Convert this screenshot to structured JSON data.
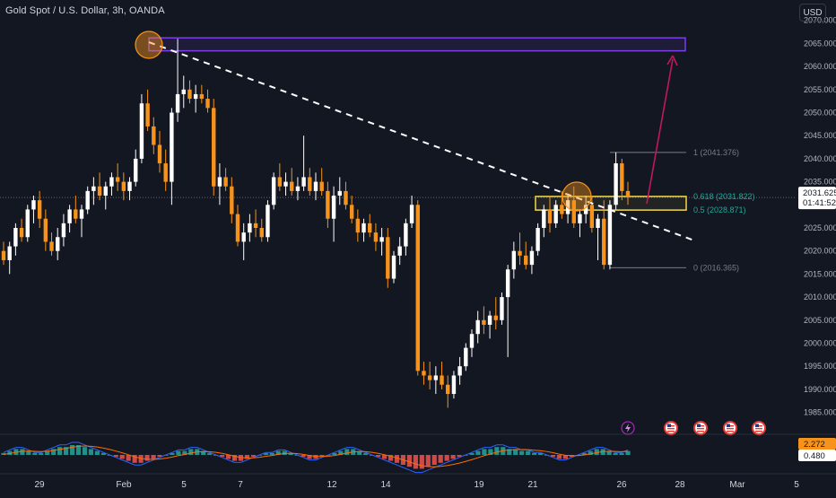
{
  "header": {
    "title": "Gold Spot / U.S. Dollar, 3h, OANDA",
    "currency_button": "USD"
  },
  "colors": {
    "background": "#131722",
    "candle_up": "#ffffff",
    "candle_down": "#f7931a",
    "rectangle_purple": "#7b3fe4",
    "fib_box": "#f5d547",
    "trend_dashed": "#ffffff",
    "arrow": "#c2185b",
    "circle": "#f7931a",
    "macd_line": "#2962ff",
    "signal_line": "#ff6d00",
    "hist_pos": "#26a69a",
    "hist_neg": "#ef5350"
  },
  "price_axis": {
    "ticks": [
      "2070.000",
      "2065.000",
      "2060.000",
      "2055.000",
      "2050.000",
      "2045.000",
      "2040.000",
      "2035.000",
      "2030.000",
      "2025.000",
      "2020.000",
      "2015.000",
      "2010.000",
      "2005.000",
      "2000.000",
      "1995.000",
      "1990.000",
      "1985.000"
    ],
    "current_price": "2031.625",
    "countdown": "01:41:52"
  },
  "time_axis": {
    "labels": [
      "29",
      "Feb",
      "5",
      "7",
      "12",
      "14",
      "19",
      "21",
      "26",
      "28",
      "Mar",
      "5"
    ]
  },
  "fib_levels": [
    {
      "label": "1 (2041.376)",
      "price": 2041.376
    },
    {
      "label": "0.618 (2031.822)",
      "price": 2031.822
    },
    {
      "label": "0.5 (2028.871)",
      "price": 2028.871
    },
    {
      "label": "0 (2016.365)",
      "price": 2016.365
    }
  ],
  "indicator": {
    "macd_value": "2.272",
    "signal_value": "0.480"
  },
  "chart_data": {
    "type": "candlestick",
    "title": "Gold Spot / U.S. Dollar, 3h, OANDA",
    "ylim": [
      1983,
      2072
    ],
    "y_ticks": [
      1985,
      1990,
      1995,
      2000,
      2005,
      2010,
      2015,
      2020,
      2025,
      2030,
      2035,
      2040,
      2045,
      2050,
      2055,
      2060,
      2065,
      2070
    ],
    "x_labels": [
      "29",
      "Feb",
      "5",
      "7",
      "12",
      "14",
      "19",
      "21",
      "26",
      "28",
      "Mar",
      "5"
    ],
    "candles_ohlc": [
      [
        2020.0,
        2022.0,
        2017.0,
        2018.0
      ],
      [
        2018.0,
        2022.0,
        2015.0,
        2021.0
      ],
      [
        2021.0,
        2026.0,
        2019.0,
        2025.0
      ],
      [
        2025.0,
        2027.0,
        2022.0,
        2023.0
      ],
      [
        2023.0,
        2030.0,
        2022.0,
        2029.0
      ],
      [
        2029.0,
        2032.0,
        2026.0,
        2031.0
      ],
      [
        2031.0,
        2033.0,
        2025.0,
        2027.0
      ],
      [
        2027.0,
        2029.0,
        2020.0,
        2022.0
      ],
      [
        2022.0,
        2024.0,
        2019.0,
        2020.0
      ],
      [
        2020.0,
        2025.0,
        2018.0,
        2023.0
      ],
      [
        2023.0,
        2028.0,
        2021.0,
        2026.0
      ],
      [
        2026.0,
        2030.0,
        2024.0,
        2029.0
      ],
      [
        2029.0,
        2032.0,
        2026.0,
        2027.0
      ],
      [
        2027.0,
        2030.0,
        2023.0,
        2029.0
      ],
      [
        2029.0,
        2034.0,
        2028.0,
        2033.0
      ],
      [
        2033.0,
        2036.0,
        2030.0,
        2034.0
      ],
      [
        2034.0,
        2037.0,
        2031.0,
        2032.0
      ],
      [
        2032.0,
        2035.0,
        2029.0,
        2034.0
      ],
      [
        2034.0,
        2037.0,
        2032.0,
        2036.0
      ],
      [
        2036.0,
        2039.0,
        2033.0,
        2035.0
      ],
      [
        2035.0,
        2037.0,
        2031.0,
        2033.0
      ],
      [
        2033.0,
        2036.0,
        2031.0,
        2035.0
      ],
      [
        2035.0,
        2042.0,
        2034.0,
        2040.0
      ],
      [
        2040.0,
        2054.0,
        2039.0,
        2052.0
      ],
      [
        2052.0,
        2055.0,
        2046.0,
        2047.0
      ],
      [
        2047.0,
        2049.0,
        2041.0,
        2043.0
      ],
      [
        2043.0,
        2046.0,
        2037.0,
        2039.0
      ],
      [
        2039.0,
        2042.0,
        2033.0,
        2035.0
      ],
      [
        2035.0,
        2051.0,
        2030.0,
        2050.0
      ],
      [
        2050.0,
        2066.0,
        2048.0,
        2054.0
      ],
      [
        2054.0,
        2058.0,
        2051.0,
        2055.0
      ],
      [
        2055.0,
        2057.0,
        2052.0,
        2053.0
      ],
      [
        2053.0,
        2056.0,
        2050.0,
        2054.0
      ],
      [
        2054.0,
        2056.0,
        2052.0,
        2053.0
      ],
      [
        2053.0,
        2055.0,
        2050.0,
        2051.0
      ],
      [
        2051.0,
        2053.0,
        2032.0,
        2034.0
      ],
      [
        2034.0,
        2039.0,
        2030.0,
        2036.0
      ],
      [
        2036.0,
        2038.0,
        2033.0,
        2034.0
      ],
      [
        2034.0,
        2036.0,
        2026.0,
        2028.0
      ],
      [
        2028.0,
        2030.0,
        2021.0,
        2022.0
      ],
      [
        2022.0,
        2026.0,
        2018.0,
        2024.0
      ],
      [
        2024.0,
        2028.0,
        2022.0,
        2026.0
      ],
      [
        2026.0,
        2029.0,
        2023.0,
        2025.0
      ],
      [
        2025.0,
        2027.0,
        2022.0,
        2023.0
      ],
      [
        2023.0,
        2031.0,
        2022.0,
        2030.0
      ],
      [
        2030.0,
        2037.0,
        2029.0,
        2036.0
      ],
      [
        2036.0,
        2039.0,
        2033.0,
        2034.0
      ],
      [
        2034.0,
        2037.0,
        2032.0,
        2035.0
      ],
      [
        2035.0,
        2038.0,
        2032.0,
        2033.0
      ],
      [
        2033.0,
        2036.0,
        2031.0,
        2034.0
      ],
      [
        2034.0,
        2045.0,
        2033.0,
        2036.0
      ],
      [
        2036.0,
        2038.0,
        2032.0,
        2033.0
      ],
      [
        2033.0,
        2037.0,
        2031.0,
        2035.0
      ],
      [
        2035.0,
        2038.0,
        2032.0,
        2033.0
      ],
      [
        2033.0,
        2035.0,
        2025.0,
        2027.0
      ],
      [
        2027.0,
        2034.0,
        2022.0,
        2032.0
      ],
      [
        2032.0,
        2036.0,
        2030.0,
        2033.0
      ],
      [
        2033.0,
        2035.0,
        2029.0,
        2030.0
      ],
      [
        2030.0,
        2032.0,
        2026.0,
        2027.0
      ],
      [
        2027.0,
        2029.0,
        2022.0,
        2024.0
      ],
      [
        2024.0,
        2027.0,
        2022.0,
        2026.0
      ],
      [
        2026.0,
        2028.0,
        2023.0,
        2024.0
      ],
      [
        2024.0,
        2026.0,
        2020.0,
        2022.0
      ],
      [
        2022.0,
        2025.0,
        2019.0,
        2023.0
      ],
      [
        2023.0,
        2025.0,
        2012.0,
        2014.0
      ],
      [
        2014.0,
        2020.0,
        2013.0,
        2019.0
      ],
      [
        2019.0,
        2023.0,
        2017.0,
        2021.0
      ],
      [
        2021.0,
        2027.0,
        2019.0,
        2026.0
      ],
      [
        2026.0,
        2032.0,
        2025.0,
        2030.0
      ],
      [
        2030.0,
        2031.0,
        1993.0,
        1994.0
      ],
      [
        1994.0,
        1996.0,
        1991.0,
        1993.0
      ],
      [
        1993.0,
        1996.0,
        1990.0,
        1992.0
      ],
      [
        1992.0,
        1995.0,
        1989.0,
        1993.0
      ],
      [
        1993.0,
        1996.0,
        1990.0,
        1991.0
      ],
      [
        1991.0,
        1993.0,
        1986.0,
        1989.0
      ],
      [
        1989.0,
        1994.0,
        1988.0,
        1993.0
      ],
      [
        1993.0,
        1997.0,
        1991.0,
        1995.0
      ],
      [
        1995.0,
        2000.0,
        1994.0,
        1999.0
      ],
      [
        1999.0,
        2003.0,
        1997.0,
        2002.0
      ],
      [
        2002.0,
        2007.0,
        2000.0,
        2005.0
      ],
      [
        2005.0,
        2008.0,
        2002.0,
        2004.0
      ],
      [
        2004.0,
        2007.0,
        2001.0,
        2006.0
      ],
      [
        2006.0,
        2010.0,
        2003.0,
        2005.0
      ],
      [
        2005.0,
        2011.0,
        2004.0,
        2010.0
      ],
      [
        2010.0,
        2017.0,
        1997.0,
        2016.0
      ],
      [
        2016.0,
        2022.0,
        2014.0,
        2020.0
      ],
      [
        2020.0,
        2024.0,
        2017.0,
        2019.0
      ],
      [
        2019.0,
        2022.0,
        2016.0,
        2017.0
      ],
      [
        2017.0,
        2021.0,
        2015.0,
        2020.0
      ],
      [
        2020.0,
        2026.0,
        2019.0,
        2025.0
      ],
      [
        2025.0,
        2030.0,
        2023.0,
        2029.0
      ],
      [
        2029.0,
        2032.0,
        2024.0,
        2026.0
      ],
      [
        2026.0,
        2031.0,
        2025.0,
        2030.0
      ],
      [
        2030.0,
        2033.0,
        2027.0,
        2028.0
      ],
      [
        2028.0,
        2032.0,
        2026.0,
        2031.0
      ],
      [
        2031.0,
        2034.0,
        2025.0,
        2026.0
      ],
      [
        2026.0,
        2029.0,
        2023.0,
        2028.0
      ],
      [
        2028.0,
        2032.0,
        2026.0,
        2030.0
      ],
      [
        2030.0,
        2032.0,
        2024.0,
        2025.0
      ],
      [
        2025.0,
        2028.0,
        2018.0,
        2027.0
      ],
      [
        2027.0,
        2031.0,
        2016.0,
        2017.0
      ],
      [
        2017.0,
        2031.0,
        2016.0,
        2030.0
      ],
      [
        2030.0,
        2041.4,
        2029.0,
        2039.0
      ],
      [
        2039.0,
        2040.0,
        2031.0,
        2033.0
      ],
      [
        2033.0,
        2035.0,
        2030.0,
        2031.6
      ]
    ],
    "annotations": {
      "resistance_zone": [
        2063.4,
        2066.2
      ],
      "fib_zone": [
        2028.871,
        2031.822
      ],
      "fib_levels": [
        2041.376,
        2031.822,
        2028.871,
        2016.365
      ]
    },
    "macd": {
      "macd_last": 2.272,
      "signal_last": 0.48,
      "histogram": [
        1,
        2,
        3,
        3,
        2,
        1,
        1,
        2,
        3,
        4,
        4,
        5,
        5,
        4,
        3,
        2,
        1,
        0,
        -1,
        -2,
        -3,
        -4,
        -4,
        -3,
        -2,
        -1,
        0,
        1,
        2,
        2,
        3,
        3,
        2,
        1,
        0,
        -1,
        -2,
        -3,
        -3,
        -2,
        -1,
        0,
        1,
        1,
        2,
        2,
        1,
        0,
        -1,
        -2,
        -2,
        -1,
        0,
        1,
        2,
        3,
        3,
        2,
        1,
        0,
        -1,
        -2,
        -3,
        -4,
        -5,
        -6,
        -7,
        -7,
        -6,
        -5,
        -4,
        -3,
        -2,
        -1,
        0,
        1,
        2,
        3,
        3,
        4,
        4,
        3,
        3,
        2,
        2,
        1,
        1,
        0,
        -1,
        -2,
        -2,
        -1,
        0,
        1,
        2,
        3,
        3,
        2,
        1,
        1,
        2
      ]
    }
  }
}
